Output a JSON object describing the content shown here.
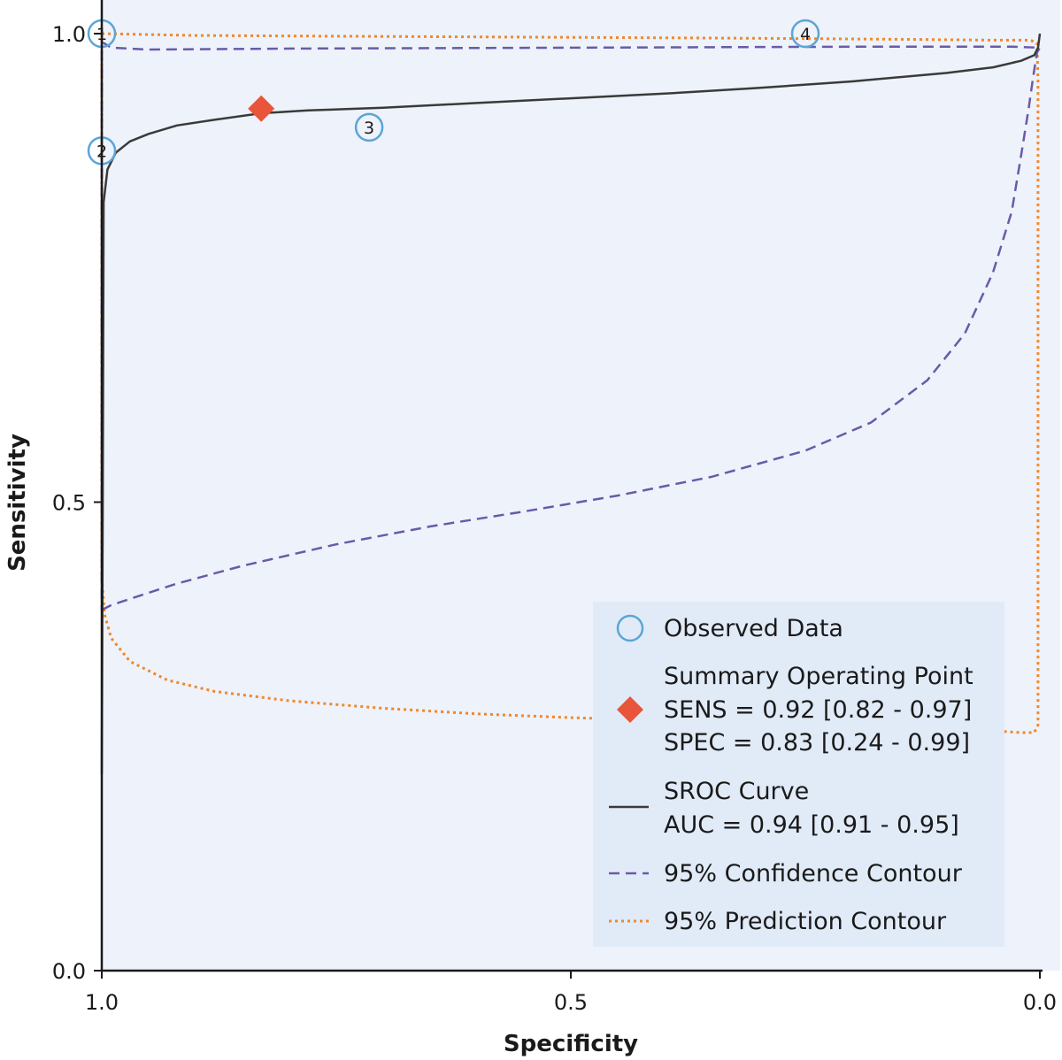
{
  "chart_data": {
    "type": "line",
    "title": "",
    "xlabel": "Specificity",
    "ylabel": "Sensitivity",
    "xlim": [
      1.0,
      0.0
    ],
    "ylim": [
      0.0,
      1.0
    ],
    "x_ticks": [
      "1.0",
      "0.5",
      "0.0"
    ],
    "y_ticks": [
      "0.0",
      "0.5",
      "1.0"
    ],
    "grid": false,
    "legend_position": "bottom-right",
    "colors": {
      "background": "#eef2fb",
      "legend_bg": "#e1ebf8",
      "observed": "#5aa6d6",
      "summary_point": "#e8553a",
      "sroc": "#3a3a3a",
      "confidence": "#6a5aa8",
      "prediction": "#f0882a"
    },
    "observed_data": [
      {
        "label": "1",
        "specificity": 1.0,
        "sensitivity": 1.0
      },
      {
        "label": "2",
        "specificity": 1.0,
        "sensitivity": 0.875
      },
      {
        "label": "3",
        "specificity": 0.715,
        "sensitivity": 0.9
      },
      {
        "label": "4",
        "specificity": 0.25,
        "sensitivity": 1.0
      }
    ],
    "summary_point": {
      "specificity": 0.83,
      "sensitivity": 0.92
    },
    "series": [
      {
        "name": "SROC Curve",
        "style": "solid",
        "points": [
          [
            1.0,
            0.21
          ],
          [
            0.999,
            0.5
          ],
          [
            0.998,
            0.82
          ],
          [
            0.994,
            0.855
          ],
          [
            0.985,
            0.873
          ],
          [
            0.97,
            0.885
          ],
          [
            0.95,
            0.893
          ],
          [
            0.92,
            0.902
          ],
          [
            0.88,
            0.908
          ],
          [
            0.83,
            0.915
          ],
          [
            0.78,
            0.918
          ],
          [
            0.7,
            0.921
          ],
          [
            0.6,
            0.926
          ],
          [
            0.5,
            0.931
          ],
          [
            0.4,
            0.936
          ],
          [
            0.3,
            0.942
          ],
          [
            0.2,
            0.949
          ],
          [
            0.1,
            0.958
          ],
          [
            0.05,
            0.964
          ],
          [
            0.02,
            0.971
          ],
          [
            0.006,
            0.977
          ],
          [
            0.002,
            0.985
          ],
          [
            0.0,
            1.0
          ]
        ]
      },
      {
        "name": "95% Confidence Contour",
        "style": "dashed",
        "points": [
          [
            1.0,
            0.385
          ],
          [
            0.99,
            0.39
          ],
          [
            0.96,
            0.4
          ],
          [
            0.92,
            0.413
          ],
          [
            0.85,
            0.432
          ],
          [
            0.75,
            0.455
          ],
          [
            0.65,
            0.474
          ],
          [
            0.55,
            0.49
          ],
          [
            0.45,
            0.507
          ],
          [
            0.35,
            0.527
          ],
          [
            0.25,
            0.555
          ],
          [
            0.18,
            0.585
          ],
          [
            0.12,
            0.63
          ],
          [
            0.08,
            0.68
          ],
          [
            0.05,
            0.745
          ],
          [
            0.03,
            0.81
          ],
          [
            0.02,
            0.87
          ],
          [
            0.012,
            0.92
          ],
          [
            0.007,
            0.955
          ],
          [
            0.003,
            0.98
          ],
          [
            0.0,
            0.985
          ],
          [
            0.03,
            0.986
          ],
          [
            0.2,
            0.986
          ],
          [
            0.5,
            0.985
          ],
          [
            0.8,
            0.984
          ],
          [
            0.95,
            0.983
          ],
          [
            0.99,
            0.985
          ],
          [
            0.998,
            0.99
          ],
          [
            1.0,
            0.99
          ],
          [
            1.0,
            0.7
          ],
          [
            1.0,
            0.385
          ]
        ]
      },
      {
        "name": "95% Prediction Contour",
        "style": "dotted",
        "points": [
          [
            1.0,
            1.0
          ],
          [
            0.9,
            0.998
          ],
          [
            0.7,
            0.997
          ],
          [
            0.5,
            0.996
          ],
          [
            0.3,
            0.995
          ],
          [
            0.15,
            0.994
          ],
          [
            0.05,
            0.993
          ],
          [
            0.01,
            0.993
          ],
          [
            0.003,
            0.99
          ],
          [
            0.002,
            0.95
          ],
          [
            0.002,
            0.6
          ],
          [
            0.002,
            0.3
          ],
          [
            0.002,
            0.262
          ],
          [
            0.006,
            0.254
          ],
          [
            0.02,
            0.254
          ],
          [
            0.05,
            0.256
          ],
          [
            0.1,
            0.259
          ],
          [
            0.2,
            0.262
          ],
          [
            0.3,
            0.265
          ],
          [
            0.4,
            0.267
          ],
          [
            0.5,
            0.27
          ],
          [
            0.6,
            0.274
          ],
          [
            0.7,
            0.28
          ],
          [
            0.8,
            0.288
          ],
          [
            0.88,
            0.298
          ],
          [
            0.93,
            0.31
          ],
          [
            0.97,
            0.33
          ],
          [
            0.99,
            0.355
          ],
          [
            0.997,
            0.38
          ],
          [
            1.0,
            0.42
          ],
          [
            1.0,
            0.7
          ],
          [
            1.0,
            1.0
          ]
        ]
      }
    ],
    "legend": {
      "observed": "Observed Data",
      "summary_line1": "Summary Operating Point",
      "summary_line2": "SENS = 0.92 [0.82 - 0.97]",
      "summary_line3": "SPEC = 0.83 [0.24 - 0.99]",
      "sroc_line1": "SROC Curve",
      "sroc_line2": "AUC = 0.94 [0.91 - 0.95]",
      "confidence": "95% Confidence Contour",
      "prediction": "95% Prediction Contour"
    }
  }
}
